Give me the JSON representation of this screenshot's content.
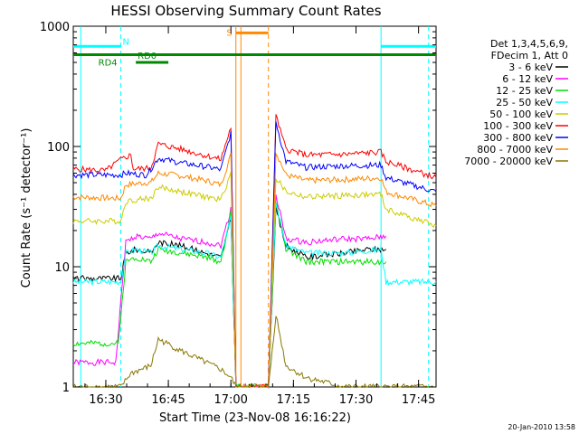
{
  "chart_data": {
    "type": "line",
    "title": "HESSI Observing Summary Count Rates",
    "xlabel": "Start Time (23-Nov-08 16:16:22)",
    "ylabel": "Count Rate (s⁻¹ detector⁻¹)",
    "y_scale": "log",
    "ylim": [
      1,
      1000
    ],
    "xlim_minutes": [
      16.37,
      17.82
    ],
    "x_ticks": [
      {
        "value": 16.5,
        "label": "16:30"
      },
      {
        "value": 16.75,
        "label": "16:45"
      },
      {
        "value": 17.0,
        "label": "17:00"
      },
      {
        "value": 17.25,
        "label": "17:15"
      },
      {
        "value": 17.5,
        "label": "17:30"
      },
      {
        "value": 17.75,
        "label": "17:45"
      }
    ],
    "y_ticks": [
      {
        "value": 1,
        "label": "1"
      },
      {
        "value": 10,
        "label": "10"
      },
      {
        "value": 100,
        "label": "100"
      },
      {
        "value": 1000,
        "label": "1000"
      }
    ],
    "legend_header": [
      "Det 1,3,4,5,6,9,",
      "FDecim 1, Att 0"
    ],
    "legend_position": "right",
    "series": [
      {
        "name": "3 - 6 keV",
        "color": "#000000",
        "points": [
          [
            16.37,
            8
          ],
          [
            16.56,
            8
          ],
          [
            16.58,
            13
          ],
          [
            16.62,
            14
          ],
          [
            16.68,
            13
          ],
          [
            16.71,
            16
          ],
          [
            16.8,
            15
          ],
          [
            16.9,
            13
          ],
          [
            16.96,
            12
          ],
          [
            17.0,
            25
          ],
          [
            17.02,
            1
          ],
          [
            17.15,
            1
          ],
          [
            17.18,
            30
          ],
          [
            17.22,
            15
          ],
          [
            17.3,
            12
          ],
          [
            17.45,
            13
          ],
          [
            17.55,
            14
          ],
          [
            17.62,
            14
          ]
        ]
      },
      {
        "name": "6 - 12 keV",
        "color": "#ff00ff",
        "points": [
          [
            16.37,
            1.6
          ],
          [
            16.54,
            1.6
          ],
          [
            16.58,
            16
          ],
          [
            16.62,
            18
          ],
          [
            16.68,
            17
          ],
          [
            16.71,
            19
          ],
          [
            16.8,
            17
          ],
          [
            16.9,
            16
          ],
          [
            16.96,
            15
          ],
          [
            17.0,
            30
          ],
          [
            17.02,
            1
          ],
          [
            17.15,
            1
          ],
          [
            17.18,
            40
          ],
          [
            17.22,
            17
          ],
          [
            17.3,
            16
          ],
          [
            17.45,
            17
          ],
          [
            17.55,
            17
          ],
          [
            17.62,
            18
          ]
        ]
      },
      {
        "name": "12 - 25 keV",
        "color": "#00dd00",
        "points": [
          [
            16.37,
            2.3
          ],
          [
            16.55,
            2.3
          ],
          [
            16.58,
            11
          ],
          [
            16.62,
            12
          ],
          [
            16.68,
            11
          ],
          [
            16.71,
            14
          ],
          [
            16.8,
            13
          ],
          [
            16.9,
            12
          ],
          [
            16.96,
            11
          ],
          [
            17.0,
            28
          ],
          [
            17.02,
            1
          ],
          [
            17.15,
            1
          ],
          [
            17.18,
            35
          ],
          [
            17.22,
            14
          ],
          [
            17.3,
            11
          ],
          [
            17.45,
            11
          ],
          [
            17.55,
            11
          ],
          [
            17.62,
            11
          ]
        ]
      },
      {
        "name": "25 - 50 keV",
        "color": "#00ffff",
        "points": [
          [
            16.37,
            7.5
          ],
          [
            16.56,
            7.5
          ],
          [
            16.58,
            13
          ],
          [
            16.62,
            14
          ],
          [
            16.68,
            13
          ],
          [
            16.71,
            15
          ],
          [
            16.8,
            14
          ],
          [
            16.9,
            13
          ],
          [
            16.96,
            12
          ],
          [
            17.0,
            26
          ],
          [
            17.02,
            1
          ],
          [
            17.15,
            1
          ],
          [
            17.18,
            34
          ],
          [
            17.22,
            15
          ],
          [
            17.3,
            13
          ],
          [
            17.45,
            13
          ],
          [
            17.6,
            14
          ],
          [
            17.62,
            7.5
          ],
          [
            17.82,
            7.5
          ]
        ]
      },
      {
        "name": "50 - 100 keV",
        "color": "#cccc00",
        "points": [
          [
            16.37,
            24
          ],
          [
            16.56,
            24
          ],
          [
            16.58,
            35
          ],
          [
            16.66,
            37
          ],
          [
            16.68,
            37
          ],
          [
            16.71,
            46
          ],
          [
            16.8,
            42
          ],
          [
            16.9,
            38
          ],
          [
            16.96,
            36
          ],
          [
            17.0,
            60
          ],
          [
            17.02,
            1
          ],
          [
            17.15,
            1
          ],
          [
            17.18,
            55
          ],
          [
            17.22,
            42
          ],
          [
            17.3,
            38
          ],
          [
            17.45,
            39
          ],
          [
            17.6,
            40
          ],
          [
            17.62,
            30
          ],
          [
            17.82,
            22
          ]
        ]
      },
      {
        "name": "100 - 300 keV",
        "color": "#ff0000",
        "points": [
          [
            16.37,
            65
          ],
          [
            16.5,
            63
          ],
          [
            16.56,
            78
          ],
          [
            16.6,
            85
          ],
          [
            16.61,
            65
          ],
          [
            16.68,
            66
          ],
          [
            16.71,
            105
          ],
          [
            16.8,
            95
          ],
          [
            16.9,
            84
          ],
          [
            16.96,
            78
          ],
          [
            17.0,
            145
          ],
          [
            17.02,
            1
          ],
          [
            17.15,
            1
          ],
          [
            17.18,
            180
          ],
          [
            17.22,
            95
          ],
          [
            17.3,
            85
          ],
          [
            17.45,
            86
          ],
          [
            17.6,
            90
          ],
          [
            17.62,
            75
          ],
          [
            17.82,
            55
          ]
        ]
      },
      {
        "name": "300 - 800 keV",
        "color": "#0000ff",
        "points": [
          [
            16.37,
            58
          ],
          [
            16.56,
            58
          ],
          [
            16.58,
            60
          ],
          [
            16.66,
            58
          ],
          [
            16.68,
            65
          ],
          [
            16.71,
            80
          ],
          [
            16.8,
            73
          ],
          [
            16.9,
            68
          ],
          [
            16.96,
            64
          ],
          [
            17.0,
            130
          ],
          [
            17.02,
            1
          ],
          [
            17.15,
            1
          ],
          [
            17.18,
            160
          ],
          [
            17.22,
            75
          ],
          [
            17.3,
            67
          ],
          [
            17.45,
            69
          ],
          [
            17.6,
            70
          ],
          [
            17.62,
            55
          ],
          [
            17.82,
            42
          ]
        ]
      },
      {
        "name": "800 - 7000 keV",
        "color": "#ff8800",
        "points": [
          [
            16.37,
            38
          ],
          [
            16.56,
            37
          ],
          [
            16.58,
            48
          ],
          [
            16.66,
            50
          ],
          [
            16.68,
            50
          ],
          [
            16.71,
            60
          ],
          [
            16.8,
            57
          ],
          [
            16.9,
            52
          ],
          [
            16.96,
            48
          ],
          [
            17.0,
            85
          ],
          [
            17.02,
            1
          ],
          [
            17.15,
            1
          ],
          [
            17.18,
            90
          ],
          [
            17.22,
            58
          ],
          [
            17.3,
            52
          ],
          [
            17.45,
            53
          ],
          [
            17.6,
            55
          ],
          [
            17.62,
            42
          ],
          [
            17.82,
            32
          ]
        ]
      },
      {
        "name": "7000 - 20000 keV",
        "color": "#887700",
        "points": [
          [
            16.37,
            1
          ],
          [
            16.56,
            1
          ],
          [
            16.6,
            1.3
          ],
          [
            16.68,
            1.5
          ],
          [
            16.71,
            2.5
          ],
          [
            16.8,
            2.0
          ],
          [
            16.9,
            1.6
          ],
          [
            16.96,
            1.4
          ],
          [
            17.0,
            1.2
          ],
          [
            17.02,
            1
          ],
          [
            17.15,
            1
          ],
          [
            17.18,
            4
          ],
          [
            17.22,
            1.5
          ],
          [
            17.3,
            1.2
          ],
          [
            17.45,
            1
          ],
          [
            17.6,
            1
          ],
          [
            17.82,
            1
          ]
        ]
      }
    ],
    "annotations": [
      {
        "label": "N",
        "color": "#00ffff",
        "intervals": [
          [
            16.37,
            16.56
          ],
          [
            17.6,
            17.82
          ]
        ],
        "level_value": 680
      },
      {
        "label": "S",
        "color": "#ff8800",
        "intervals": [
          [
            17.02,
            17.15
          ]
        ],
        "level_value": 880
      },
      {
        "label": "RD4",
        "color": "#008800",
        "intervals": [
          [
            16.37,
            16.56
          ]
        ],
        "level_value": 580
      },
      {
        "label": "RD0",
        "color": "#008800",
        "intervals": [
          [
            16.62,
            16.75
          ]
        ],
        "level_value": 500
      },
      {
        "label": "",
        "color": "#008800",
        "intervals": [
          [
            16.56,
            17.82
          ]
        ],
        "level_value": 580
      }
    ],
    "vertical_markers": [
      {
        "value": 16.4,
        "color": "#00ffff",
        "style": "solid"
      },
      {
        "value": 16.56,
        "color": "#00ffff",
        "style": "dashed"
      },
      {
        "value": 17.02,
        "color": "#ff8800",
        "style": "solid"
      },
      {
        "value": 17.04,
        "color": "#ff8800",
        "style": "solid"
      },
      {
        "value": 17.15,
        "color": "#ff8800",
        "style": "dashed"
      },
      {
        "value": 17.6,
        "color": "#00ffff",
        "style": "solid"
      },
      {
        "value": 17.79,
        "color": "#00ffff",
        "style": "dashed"
      }
    ],
    "timestamp": "20-Jan-2010 13:58"
  }
}
